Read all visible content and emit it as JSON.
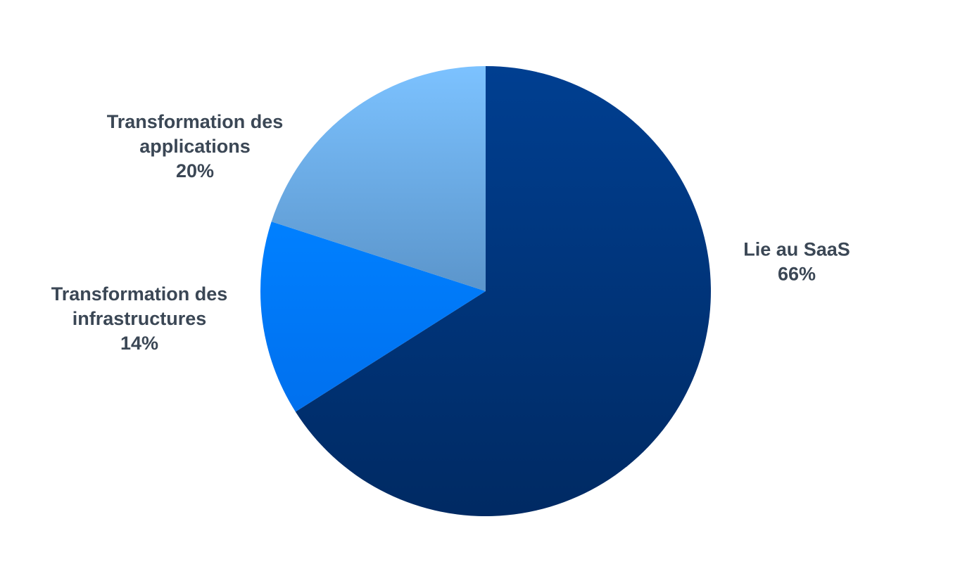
{
  "chart_data": {
    "type": "pie",
    "title": "",
    "slices": [
      {
        "name": "Lie au SaaS",
        "value": 66,
        "percent_label": "66%",
        "label_lines": [
          "Lie au SaaS"
        ],
        "color_light": "#003f91",
        "color_dark": "#002a63"
      },
      {
        "name": "Transformation des infrastructures",
        "value": 14,
        "percent_label": "14%",
        "label_lines": [
          "Transformation des",
          "infrastructures"
        ],
        "color_light": "#0080ff",
        "color_dark": "#0070ee"
      },
      {
        "name": "Transformation des applications",
        "value": 20,
        "percent_label": "20%",
        "label_lines": [
          "Transformation des",
          "applications"
        ],
        "color_light": "#7cc2ff",
        "color_dark": "#5b95cb"
      }
    ],
    "start_angle_deg": 0,
    "direction": "clockwise",
    "legend": "none"
  }
}
